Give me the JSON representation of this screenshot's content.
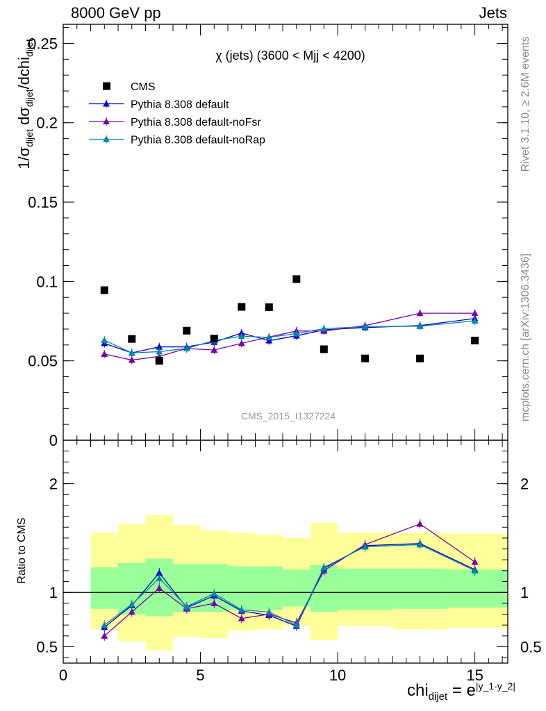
{
  "header": {
    "left": "8000 GeV pp",
    "right": "Jets"
  },
  "side_labels": {
    "rivet": "Rivet 3.1.10, ≥ 2.6M events",
    "mcplots": "mcplots.cern.ch [arXiv:1306.3436]"
  },
  "axis_titles": {
    "y_main_prefix": "1/σ",
    "y_main_sub1": "dijet",
    "y_main_mid": " dσ",
    "y_main_sub2": "dijet",
    "y_main_mid2": "/dchi",
    "y_main_sub3": "dijet",
    "y_ratio": "Ratio to CMS",
    "x_base": "chi",
    "x_sub": "dijet",
    "x_eq": " = e",
    "x_sup": "|y_1-y_2|"
  },
  "colors": {
    "cms": "#000000",
    "default": "#0000cc",
    "noFsr": "#7700aa",
    "noRap": "#0088aa",
    "band_inner": "#99ff99",
    "band_outer": "#ffff99"
  },
  "chart_data": [
    {
      "type": "scatter",
      "title": "χ (jets) (3600 < Mjj < 4200)",
      "watermark": "CMS_2015_I1327224",
      "xlim": [
        0,
        16.2
      ],
      "ylim": [
        0,
        0.262
      ],
      "y_ticks": [
        0.05,
        0.1,
        0.15,
        0.2,
        0.25
      ],
      "y_tick_labels": [
        "0.05",
        "0.1",
        "0.15",
        "0.2",
        "0.25"
      ],
      "y_zero_label": "0",
      "legend_position": "top-left",
      "x": [
        1.5,
        2.5,
        3.5,
        4.5,
        5.5,
        6.5,
        7.5,
        8.5,
        9.5,
        11,
        13,
        15
      ],
      "series": [
        {
          "name": "CMS",
          "marker": "square",
          "values": [
            0.0945,
            0.0638,
            0.05,
            0.069,
            0.064,
            0.084,
            0.0838,
            0.1015,
            0.0573,
            0.0515,
            0.0515,
            0.0628
          ]
        },
        {
          "name": "Pythia 8.308 default",
          "marker": "triangle",
          "values": [
            0.061,
            0.055,
            0.0588,
            0.0588,
            0.0618,
            0.0675,
            0.0627,
            0.0658,
            0.0695,
            0.071,
            0.0722,
            0.0767
          ]
        },
        {
          "name": "Pythia 8.308 default-noFsr",
          "marker": "triangle",
          "values": [
            0.0543,
            0.0505,
            0.0528,
            0.0578,
            0.0568,
            0.061,
            0.065,
            0.0688,
            0.0688,
            0.0722,
            0.08,
            0.08
          ]
        },
        {
          "name": "Pythia 8.308 default-noRap",
          "marker": "triangle",
          "values": [
            0.063,
            0.055,
            0.0558,
            0.0578,
            0.0628,
            0.0655,
            0.0648,
            0.0672,
            0.0703,
            0.0715,
            0.0718,
            0.0752
          ]
        }
      ]
    },
    {
      "type": "line",
      "title": "",
      "xlim": [
        0,
        16.2
      ],
      "ylim": [
        0.35,
        2.4
      ],
      "y_ticks": [
        0.5,
        1,
        2
      ],
      "y_tick_labels": [
        "0.5",
        "1",
        "2"
      ],
      "x_ticks": [
        0,
        5,
        10,
        15
      ],
      "x_tick_labels": [
        "0",
        "5",
        "10",
        "15"
      ],
      "x": [
        1.5,
        2.5,
        3.5,
        4.5,
        5.5,
        6.5,
        7.5,
        8.5,
        9.5,
        11,
        13,
        15
      ],
      "bins": [
        [
          1,
          2
        ],
        [
          2,
          3
        ],
        [
          3,
          4
        ],
        [
          4,
          5
        ],
        [
          5,
          6
        ],
        [
          6,
          7
        ],
        [
          7,
          8
        ],
        [
          8,
          9
        ],
        [
          9,
          10
        ],
        [
          10,
          12
        ],
        [
          12,
          14
        ],
        [
          14,
          16.2
        ]
      ],
      "band_inner": [
        [
          0.85,
          1.23
        ],
        [
          0.8,
          1.27
        ],
        [
          0.78,
          1.31
        ],
        [
          0.82,
          1.26
        ],
        [
          0.82,
          1.26
        ],
        [
          0.84,
          1.24
        ],
        [
          0.84,
          1.24
        ],
        [
          0.87,
          1.21
        ],
        [
          0.82,
          1.25
        ],
        [
          0.84,
          1.22
        ],
        [
          0.85,
          1.22
        ],
        [
          0.86,
          1.21
        ]
      ],
      "band_outer": [
        [
          0.66,
          1.55
        ],
        [
          0.55,
          1.63
        ],
        [
          0.47,
          1.71
        ],
        [
          0.59,
          1.62
        ],
        [
          0.58,
          1.57
        ],
        [
          0.65,
          1.55
        ],
        [
          0.66,
          1.53
        ],
        [
          0.69,
          1.5
        ],
        [
          0.56,
          1.64
        ],
        [
          0.69,
          1.55
        ],
        [
          0.66,
          1.55
        ],
        [
          0.67,
          1.54
        ]
      ],
      "series": [
        {
          "name": "Pythia 8.308 default",
          "values": [
            0.68,
            0.88,
            1.18,
            0.86,
            0.97,
            0.83,
            0.79,
            0.69,
            1.22,
            1.43,
            1.45,
            1.21
          ]
        },
        {
          "name": "Pythia 8.308 default-noFsr",
          "values": [
            0.6,
            0.82,
            1.04,
            0.85,
            0.9,
            0.76,
            0.8,
            0.72,
            1.2,
            1.44,
            1.63,
            1.28
          ]
        },
        {
          "name": "Pythia 8.308 default-noRap",
          "values": [
            0.7,
            0.89,
            1.13,
            0.87,
            0.99,
            0.84,
            0.82,
            0.7,
            1.23,
            1.42,
            1.44,
            1.2
          ]
        }
      ]
    }
  ]
}
